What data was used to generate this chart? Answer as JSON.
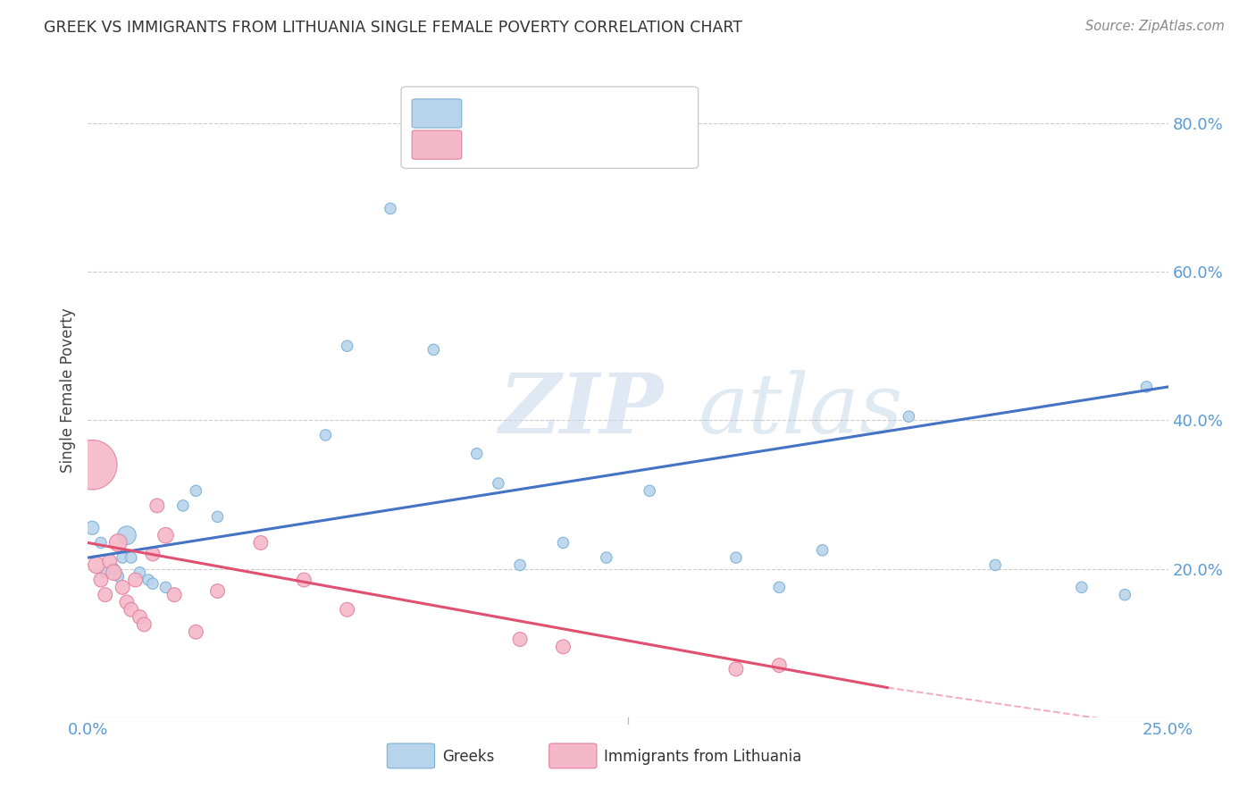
{
  "title": "GREEK VS IMMIGRANTS FROM LITHUANIA SINGLE FEMALE POVERTY CORRELATION CHART",
  "source": "Source: ZipAtlas.com",
  "ylabel": "Single Female Poverty",
  "xlim": [
    0.0,
    0.25
  ],
  "ylim": [
    0.0,
    0.88
  ],
  "yticks": [
    0.2,
    0.4,
    0.6,
    0.8
  ],
  "ytick_labels": [
    "20.0%",
    "40.0%",
    "60.0%",
    "80.0%"
  ],
  "blue_scatter": {
    "color": "#b8d4ed",
    "edgecolor": "#7aafd4",
    "x": [
      0.001,
      0.003,
      0.004,
      0.006,
      0.007,
      0.008,
      0.009,
      0.01,
      0.012,
      0.014,
      0.015,
      0.018,
      0.022,
      0.025,
      0.03,
      0.055,
      0.06,
      0.07,
      0.08,
      0.09,
      0.095,
      0.1,
      0.11,
      0.12,
      0.13,
      0.15,
      0.16,
      0.17,
      0.19,
      0.21,
      0.23,
      0.24,
      0.245
    ],
    "y": [
      0.255,
      0.235,
      0.195,
      0.2,
      0.19,
      0.215,
      0.245,
      0.215,
      0.195,
      0.185,
      0.18,
      0.175,
      0.285,
      0.305,
      0.27,
      0.38,
      0.5,
      0.685,
      0.495,
      0.355,
      0.315,
      0.205,
      0.235,
      0.215,
      0.305,
      0.215,
      0.175,
      0.225,
      0.405,
      0.205,
      0.175,
      0.165,
      0.445
    ],
    "sizes": [
      120,
      80,
      80,
      80,
      80,
      80,
      220,
      80,
      80,
      80,
      80,
      80,
      80,
      80,
      80,
      80,
      80,
      80,
      80,
      80,
      80,
      80,
      80,
      80,
      80,
      80,
      80,
      80,
      80,
      80,
      80,
      80,
      80
    ]
  },
  "pink_scatter": {
    "color": "#f5b8c8",
    "edgecolor": "#e080a0",
    "x": [
      0.001,
      0.002,
      0.003,
      0.004,
      0.005,
      0.006,
      0.007,
      0.008,
      0.009,
      0.01,
      0.011,
      0.012,
      0.013,
      0.015,
      0.016,
      0.018,
      0.02,
      0.025,
      0.03,
      0.04,
      0.05,
      0.06,
      0.1,
      0.11,
      0.15,
      0.16
    ],
    "y": [
      0.34,
      0.205,
      0.185,
      0.165,
      0.21,
      0.195,
      0.235,
      0.175,
      0.155,
      0.145,
      0.185,
      0.135,
      0.125,
      0.22,
      0.285,
      0.245,
      0.165,
      0.115,
      0.17,
      0.235,
      0.185,
      0.145,
      0.105,
      0.095,
      0.065,
      0.07
    ],
    "sizes": [
      1600,
      180,
      130,
      130,
      130,
      160,
      200,
      130,
      130,
      130,
      130,
      130,
      130,
      130,
      130,
      160,
      130,
      130,
      130,
      130,
      130,
      130,
      130,
      130,
      130,
      130
    ]
  },
  "blue_line": {
    "x0": 0.0,
    "x1": 0.25,
    "y0": 0.215,
    "y1": 0.445
  },
  "pink_line": {
    "x0": 0.0,
    "x1": 0.185,
    "y0": 0.235,
    "y1": 0.04
  },
  "pink_line_dashed": {
    "x0": 0.185,
    "x1": 0.25,
    "y0": 0.04,
    "y1": -0.015
  },
  "watermark_text": "ZIP",
  "watermark_text2": "atlas",
  "background_color": "#ffffff",
  "grid_color": "#cccccc",
  "title_color": "#333333",
  "axis_tick_color": "#5b9bd5",
  "line_blue": "#4472c4",
  "line_pink": "#e05070",
  "legend_blue_fill": "#b8d4ed",
  "legend_blue_edge": "#7aafd4",
  "legend_pink_fill": "#f5b8c8",
  "legend_pink_edge": "#e080a0"
}
